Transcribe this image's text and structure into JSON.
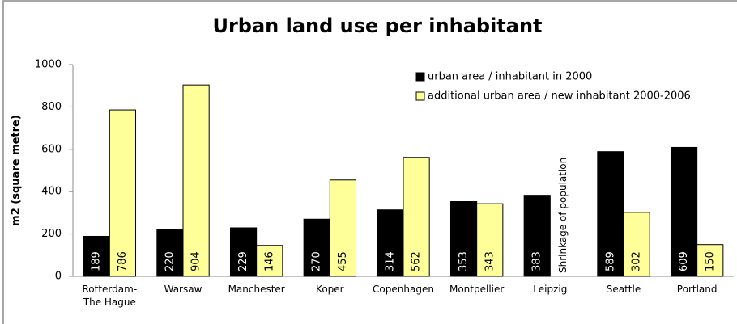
{
  "chart_data": {
    "type": "bar",
    "title": "Urban land use per inhabitant",
    "y_label": "m2 (square metre)",
    "categories": [
      "Rotterdam-\nThe Hague",
      "Warsaw",
      "Manchester",
      "Koper",
      "Copenhagen",
      "Montpellier",
      "Leipzig",
      "Seattle",
      "Portland"
    ],
    "series": [
      {
        "name": "urban area / inhabitant in 2000",
        "color": "#000000",
        "values": [
          189,
          220,
          229,
          270,
          314,
          353,
          383,
          589,
          609
        ]
      },
      {
        "name": "additional urban area / new inhabitant 2000-2006",
        "color": "#ffff99",
        "values": [
          786,
          904,
          146,
          455,
          562,
          343,
          null,
          302,
          150
        ]
      }
    ],
    "annotations": [
      {
        "text": "Shrinkage of population",
        "category": 6
      }
    ],
    "ylim": [
      0,
      1000
    ],
    "yticks": [
      0,
      200,
      400,
      600,
      800,
      1000
    ],
    "grid": false,
    "legend": "top-right"
  }
}
